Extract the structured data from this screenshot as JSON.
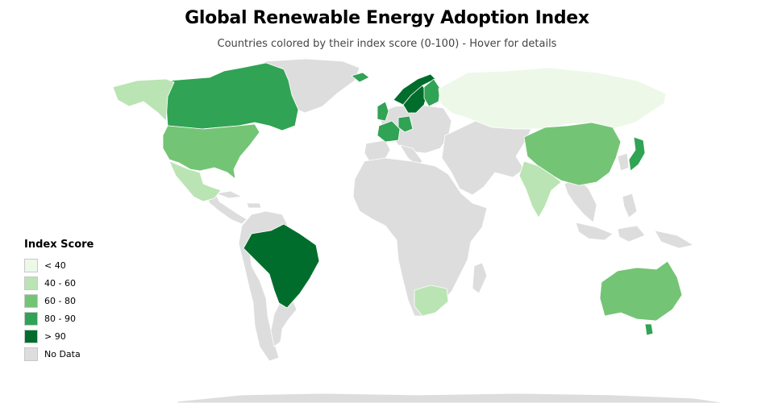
{
  "header": {
    "title": "Global Renewable Energy Adoption Index",
    "subtitle": "Countries colored by their index score (0-100) - Hover for details"
  },
  "legend": {
    "title": "Index Score",
    "items": [
      {
        "label": "< 40",
        "color": "#edf8e9"
      },
      {
        "label": "40 - 60",
        "color": "#bae4b3"
      },
      {
        "label": "60 - 80",
        "color": "#74c476"
      },
      {
        "label": "80 - 90",
        "color": "#31a354"
      },
      {
        "label": "> 90",
        "color": "#006d2c"
      },
      {
        "label": "No Data",
        "color": "#dddddd"
      }
    ]
  },
  "map": {
    "no_data_color": "#dddddd",
    "border_color": "#ffffff",
    "countries": [
      {
        "name": "Canada",
        "bucket": "80 - 90"
      },
      {
        "name": "Alaska (United States)",
        "bucket": "40 - 60"
      },
      {
        "name": "United States",
        "bucket": "60 - 80"
      },
      {
        "name": "Mexico",
        "bucket": "40 - 60"
      },
      {
        "name": "Brazil",
        "bucket": "> 90"
      },
      {
        "name": "Norway",
        "bucket": "> 90"
      },
      {
        "name": "Sweden",
        "bucket": "> 90"
      },
      {
        "name": "Finland",
        "bucket": "80 - 90"
      },
      {
        "name": "Iceland",
        "bucket": "80 - 90"
      },
      {
        "name": "United Kingdom",
        "bucket": "80 - 90"
      },
      {
        "name": "France",
        "bucket": "80 - 90"
      },
      {
        "name": "Germany",
        "bucket": "80 - 90"
      },
      {
        "name": "Russia",
        "bucket": "< 40"
      },
      {
        "name": "China",
        "bucket": "60 - 80"
      },
      {
        "name": "India",
        "bucket": "40 - 60"
      },
      {
        "name": "Japan",
        "bucket": "80 - 90"
      },
      {
        "name": "South Africa",
        "bucket": "40 - 60"
      },
      {
        "name": "Australia",
        "bucket": "60 - 80"
      },
      {
        "name": "New Zealand",
        "bucket": "80 - 90"
      }
    ]
  }
}
